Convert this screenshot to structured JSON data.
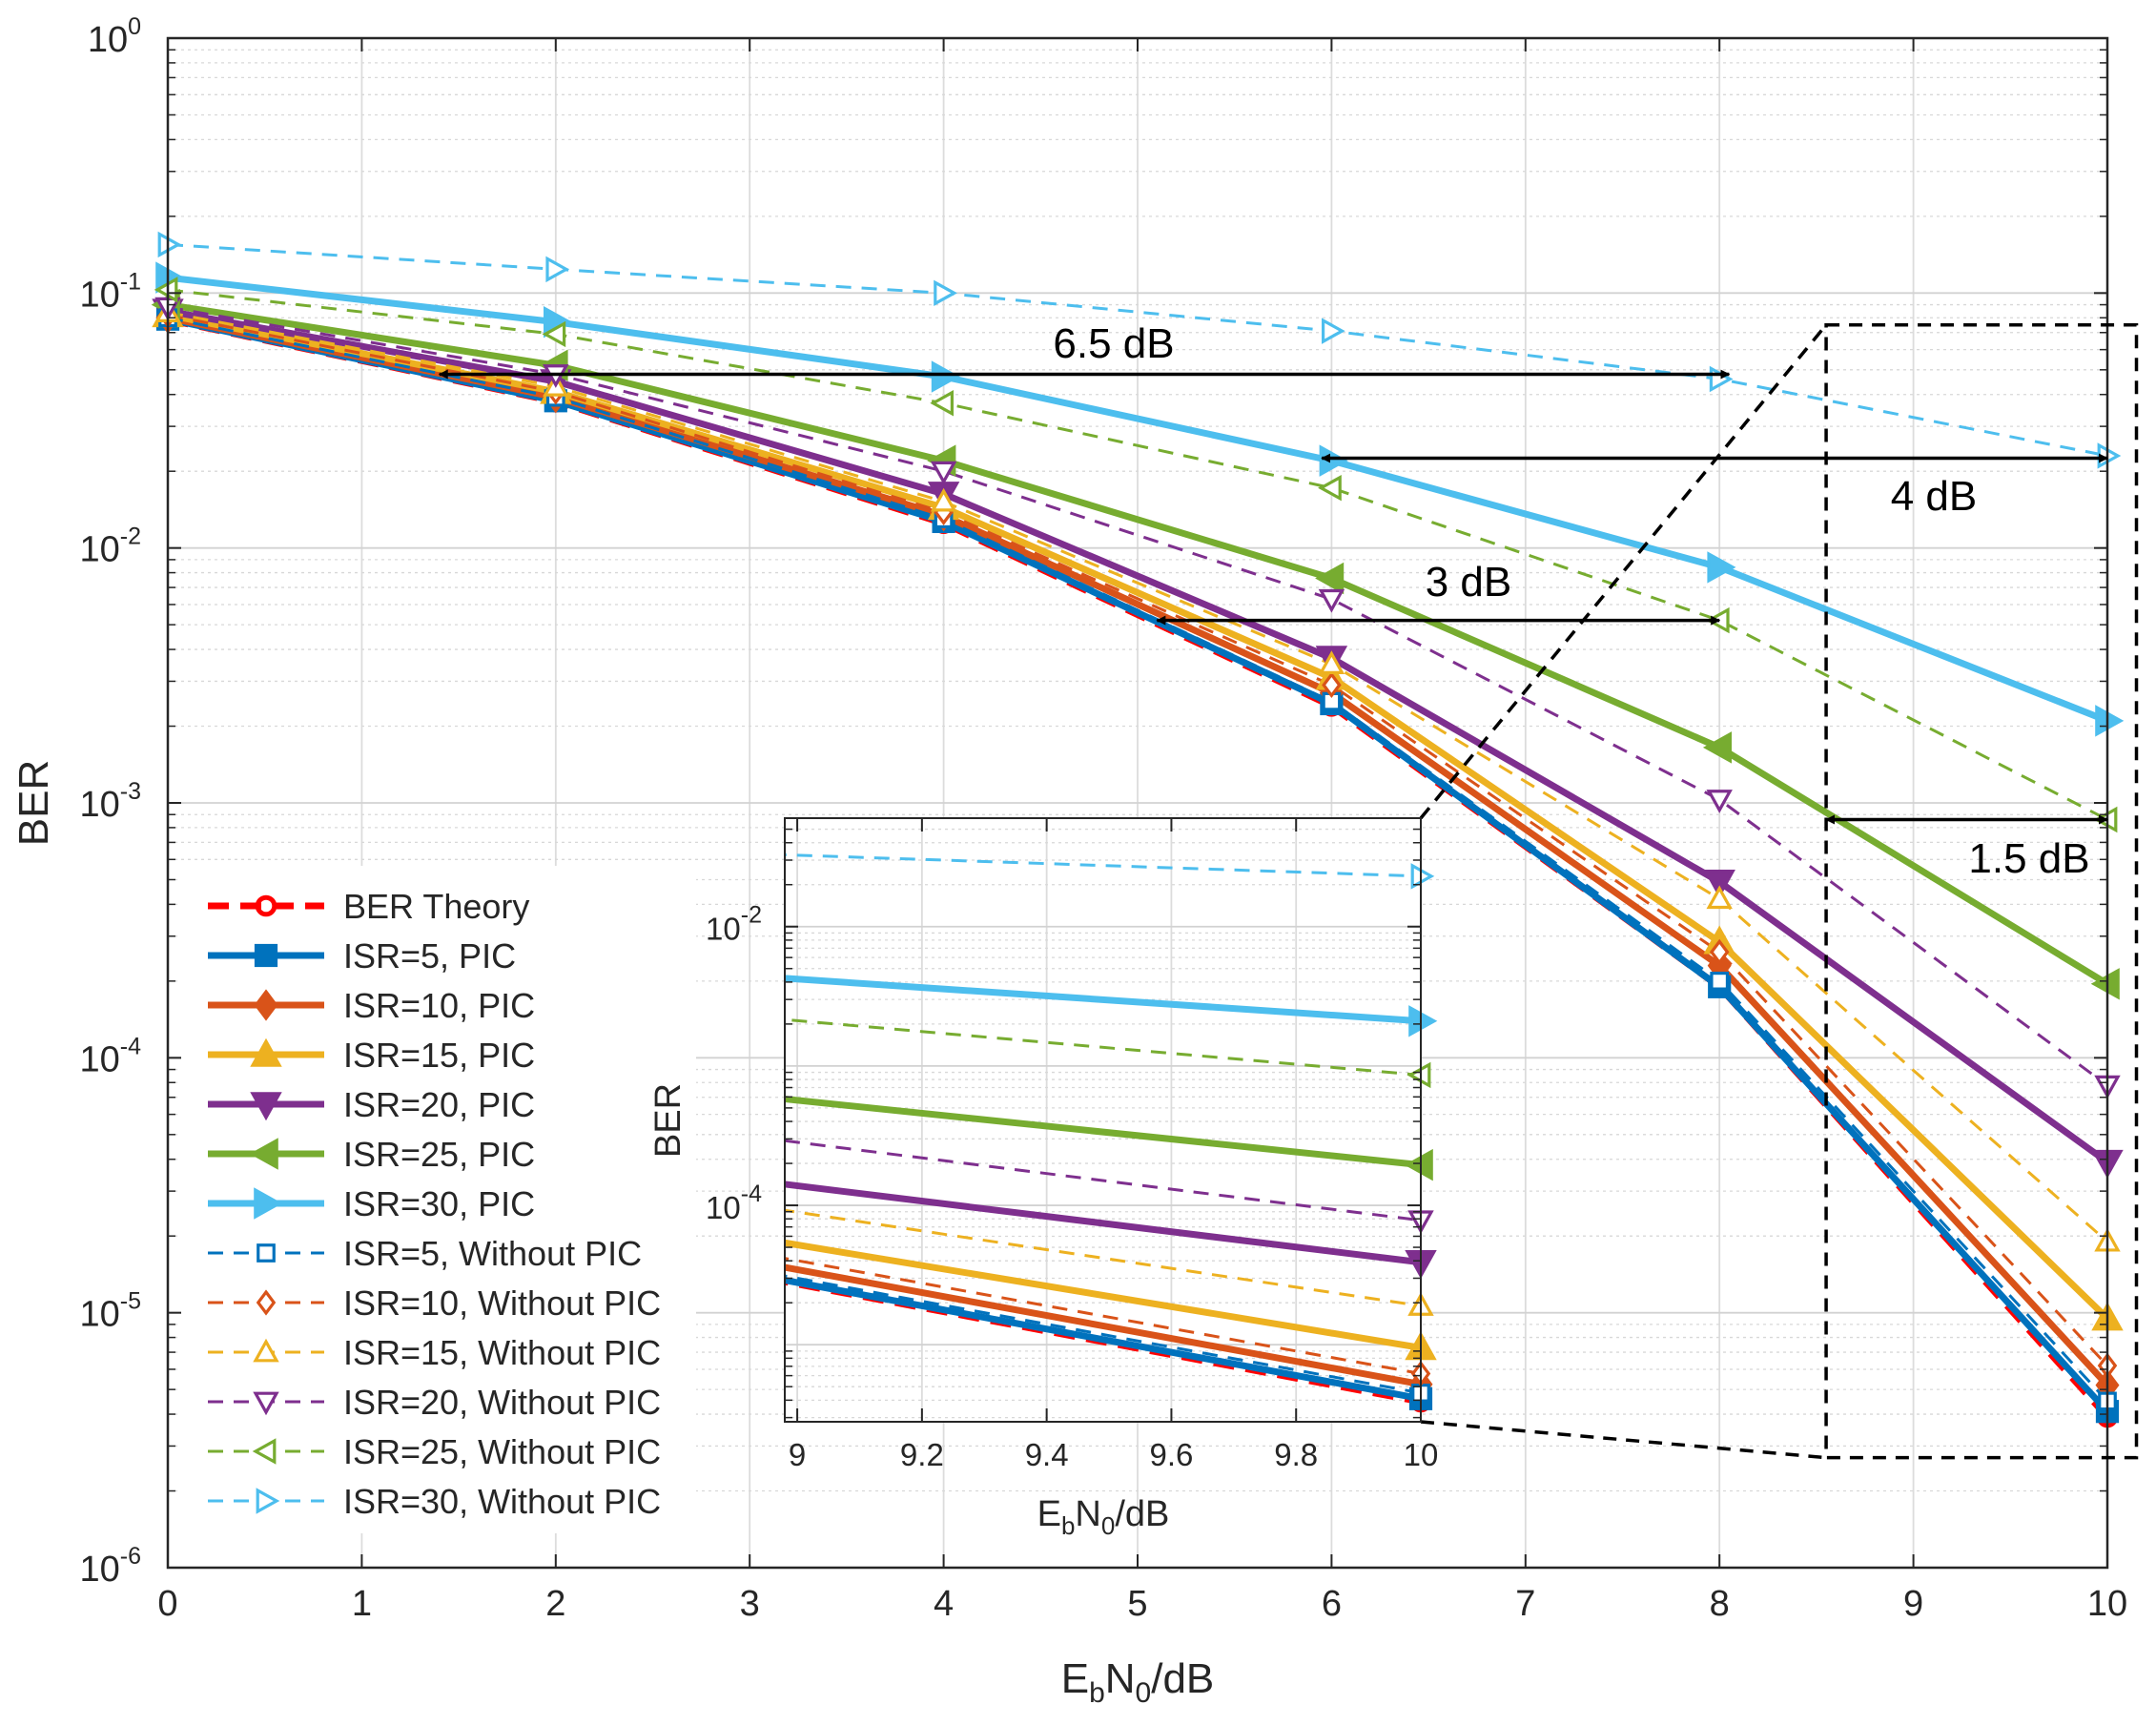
{
  "chart_data": {
    "type": "line",
    "yscale": "log",
    "xlabel": "EbN0/dB",
    "xlabel_parts": {
      "base": "E",
      "sub1": "b",
      "mid": "N",
      "sub2": "0",
      "tail": "/dB"
    },
    "ylabel": "BER",
    "xlim": [
      0,
      10
    ],
    "ylim": [
      1e-06,
      1
    ],
    "grid": true,
    "minor_grid": true,
    "legend_position": "lower-left",
    "x_ticks": [
      "0",
      "1",
      "2",
      "3",
      "4",
      "5",
      "6",
      "7",
      "8",
      "9",
      "10"
    ],
    "y_ticks": [
      {
        "base": "10",
        "exp": "0"
      },
      {
        "base": "10",
        "exp": "-1"
      },
      {
        "base": "10",
        "exp": "-2"
      },
      {
        "base": "10",
        "exp": "-3"
      },
      {
        "base": "10",
        "exp": "-4"
      },
      {
        "base": "10",
        "exp": "-5"
      },
      {
        "base": "10",
        "exp": "-6"
      }
    ],
    "x": [
      0,
      2,
      4,
      6,
      8,
      10
    ],
    "series": [
      {
        "name": "BER Theory",
        "color": "#FF0000",
        "style": "dashed",
        "width": "thick",
        "marker": "circle",
        "filled": false,
        "values": [
          0.0786,
          0.0375,
          0.0125,
          0.0024,
          0.00019,
          3.9e-06
        ]
      },
      {
        "name": "ISR=5, PIC",
        "color": "#0072BD",
        "style": "solid",
        "width": "thick",
        "marker": "square",
        "filled": true,
        "values": [
          0.079,
          0.0378,
          0.0127,
          0.00245,
          0.00019,
          4.1e-06
        ]
      },
      {
        "name": "ISR=10, PIC",
        "color": "#D95319",
        "style": "solid",
        "width": "thick",
        "marker": "diamond",
        "filled": true,
        "values": [
          0.08,
          0.039,
          0.0134,
          0.0027,
          0.00023,
          5.2e-06
        ]
      },
      {
        "name": "ISR=15, PIC",
        "color": "#EDB120",
        "style": "solid",
        "width": "thick",
        "marker": "triangle-up",
        "filled": true,
        "values": [
          0.082,
          0.041,
          0.0144,
          0.0031,
          0.000285,
          9.5e-06
        ]
      },
      {
        "name": "ISR=20, PIC",
        "color": "#7E2F8E",
        "style": "solid",
        "width": "thick",
        "marker": "triangle-down",
        "filled": true,
        "values": [
          0.085,
          0.045,
          0.0163,
          0.0037,
          0.00049,
          3.9e-05
        ]
      },
      {
        "name": "ISR=25, PIC",
        "color": "#77AC30",
        "style": "solid",
        "width": "thick",
        "marker": "triangle-left",
        "filled": true,
        "values": [
          0.09,
          0.052,
          0.022,
          0.0076,
          0.00165,
          0.000195
        ]
      },
      {
        "name": "ISR=30, PIC",
        "color": "#4DBEEE",
        "style": "solid",
        "width": "thick",
        "marker": "triangle-right",
        "filled": true,
        "values": [
          0.115,
          0.077,
          0.047,
          0.022,
          0.0084,
          0.0021
        ]
      },
      {
        "name": "ISR=5, Without PIC",
        "color": "#0072BD",
        "style": "dashed",
        "width": "thin",
        "marker": "square",
        "filled": false,
        "values": [
          0.08,
          0.039,
          0.013,
          0.0025,
          0.0002,
          4.5e-06
        ]
      },
      {
        "name": "ISR=10, Without PIC",
        "color": "#D95319",
        "style": "dashed",
        "width": "thin",
        "marker": "diamond",
        "filled": false,
        "values": [
          0.082,
          0.041,
          0.0138,
          0.0029,
          0.00026,
          6.2e-06
        ]
      },
      {
        "name": "ISR=15, Without PIC",
        "color": "#EDB120",
        "style": "dashed",
        "width": "thin",
        "marker": "triangle-up",
        "filled": false,
        "values": [
          0.084,
          0.043,
          0.0152,
          0.0035,
          0.00042,
          1.9e-05
        ]
      },
      {
        "name": "ISR=20, Without PIC",
        "color": "#7E2F8E",
        "style": "dashed",
        "width": "thin",
        "marker": "triangle-down",
        "filled": false,
        "values": [
          0.088,
          0.048,
          0.02,
          0.0063,
          0.00103,
          7.8e-05
        ]
      },
      {
        "name": "ISR=25, Without PIC",
        "color": "#77AC30",
        "style": "dashed",
        "width": "thin",
        "marker": "triangle-left",
        "filled": false,
        "values": [
          0.103,
          0.069,
          0.037,
          0.0172,
          0.0052,
          0.00086
        ]
      },
      {
        "name": "ISR=30, Without PIC",
        "color": "#4DBEEE",
        "style": "dashed",
        "width": "thin",
        "marker": "triangle-right",
        "filled": false,
        "values": [
          0.155,
          0.124,
          0.1,
          0.071,
          0.046,
          0.023
        ]
      }
    ],
    "annotations": [
      {
        "label": "6.5 dB",
        "from_x": 1.4,
        "to_x": 8.05,
        "at_y": 0.048
      },
      {
        "label": "4 dB",
        "from_x": 5.95,
        "to_x": 10.0,
        "at_y": 0.0225
      },
      {
        "label": "3 dB",
        "from_x": 5.1,
        "to_x": 8.0,
        "at_y": 0.0052
      },
      {
        "label": "1.5 dB",
        "from_x": 8.55,
        "to_x": 10.0,
        "at_y": 0.00086
      }
    ],
    "zoom_box": {
      "x_range": [
        8.55,
        10.15
      ],
      "y_range": [
        2.7e-06,
        0.075
      ]
    },
    "inset": {
      "xlim": [
        8.98,
        10
      ],
      "ylim": [
        2.8e-06,
        0.06
      ],
      "xlabel": "EbN0/dB",
      "ylabel": "BER",
      "x_ticks": [
        "9",
        "9.2",
        "9.4",
        "9.6",
        "9.8",
        "10"
      ],
      "y_ticks": [
        {
          "base": "10",
          "exp": "-2"
        },
        {
          "base": "10",
          "exp": "-4"
        }
      ]
    }
  }
}
